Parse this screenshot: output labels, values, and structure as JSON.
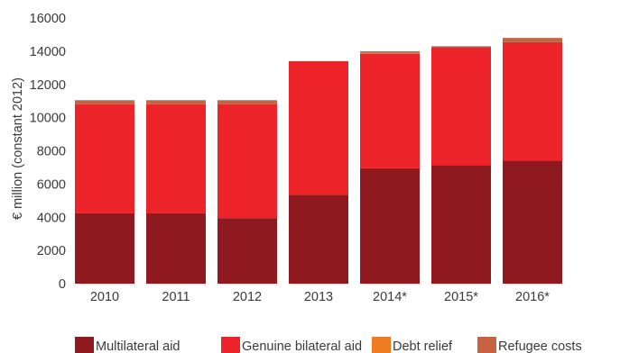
{
  "chart_data": {
    "type": "bar",
    "stacked": true,
    "categories": [
      "2010",
      "2011",
      "2012",
      "2013",
      "2014*",
      "2015*",
      "2016*"
    ],
    "series": [
      {
        "name": "Multilateral aid",
        "color": "#8e1a1f",
        "values": [
          4250,
          4250,
          3950,
          5350,
          6950,
          7150,
          7400
        ]
      },
      {
        "name": "Genuine bilateral aid",
        "color": "#ec2329",
        "values": [
          6550,
          6550,
          6850,
          8050,
          6900,
          7100,
          7150
        ]
      },
      {
        "name": "Debt relief",
        "color": "#ef7b22",
        "values": [
          0,
          0,
          0,
          0,
          50,
          0,
          0
        ]
      },
      {
        "name": "Refugee costs",
        "color": "#c7613f",
        "values": [
          250,
          250,
          250,
          0,
          100,
          50,
          250
        ]
      }
    ],
    "ylabel": "€ million (constant 2012)",
    "xlabel": "",
    "ylim": [
      0,
      16000
    ],
    "yticks": [
      "0",
      "2000",
      "4000",
      "6000",
      "8000",
      "10000",
      "12000",
      "14000",
      "16000"
    ],
    "grid": false,
    "legend_position": "bottom"
  }
}
